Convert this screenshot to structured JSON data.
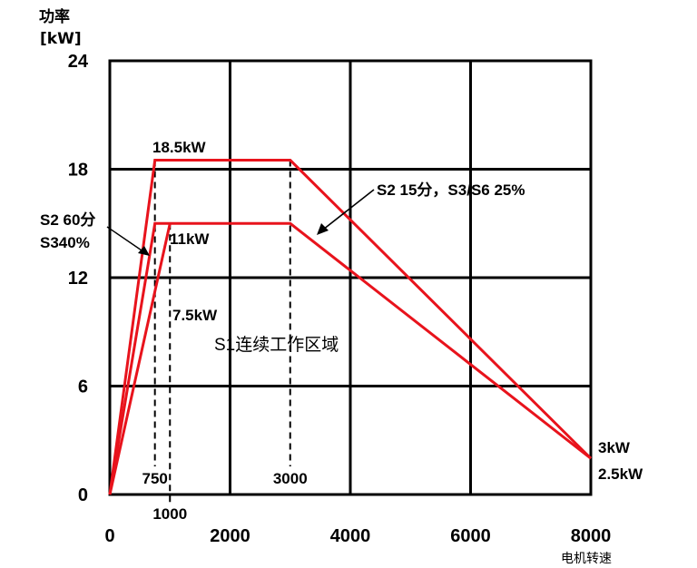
{
  "chart_data": {
    "type": "line",
    "ylabel_line1": "功率",
    "ylabel_line2": "[kW]",
    "xlabel": "电机转速",
    "xlim": [
      0,
      8000
    ],
    "ylim": [
      0,
      24
    ],
    "x_ticks": [
      "0",
      "2000",
      "4000",
      "6000",
      "8000"
    ],
    "y_ticks": [
      "0",
      "6",
      "12",
      "18",
      "24"
    ],
    "grid": true,
    "series": [
      {
        "points": [
          [
            0,
            0
          ],
          [
            750,
            18.5
          ],
          [
            3000,
            18.5
          ],
          [
            8000,
            2.0
          ]
        ]
      },
      {
        "points": [
          [
            0,
            0
          ],
          [
            750,
            15.0
          ],
          [
            3000,
            15.0
          ],
          [
            8000,
            2.0
          ]
        ]
      },
      {
        "points": [
          [
            0,
            0
          ],
          [
            1000,
            15.0
          ]
        ]
      }
    ],
    "markers": [
      {
        "x": 750,
        "label": "750"
      },
      {
        "x": 1000,
        "label": "1000"
      },
      {
        "x": 3000,
        "label": "3000"
      }
    ],
    "annotations": {
      "peak": "18.5kW",
      "s2_60": "S2 60分",
      "s3_40": "S340%",
      "p11": "11kW",
      "p75": "7.5kW",
      "s1_region": "S1连续工作区域",
      "s2_15": "S2 15分，S3/S6 25%",
      "end_3": "3kW",
      "end_25": "2.5kW"
    },
    "colors": {
      "curve": "#e8131c",
      "grid": "#000000",
      "arrow": "#000000"
    }
  }
}
